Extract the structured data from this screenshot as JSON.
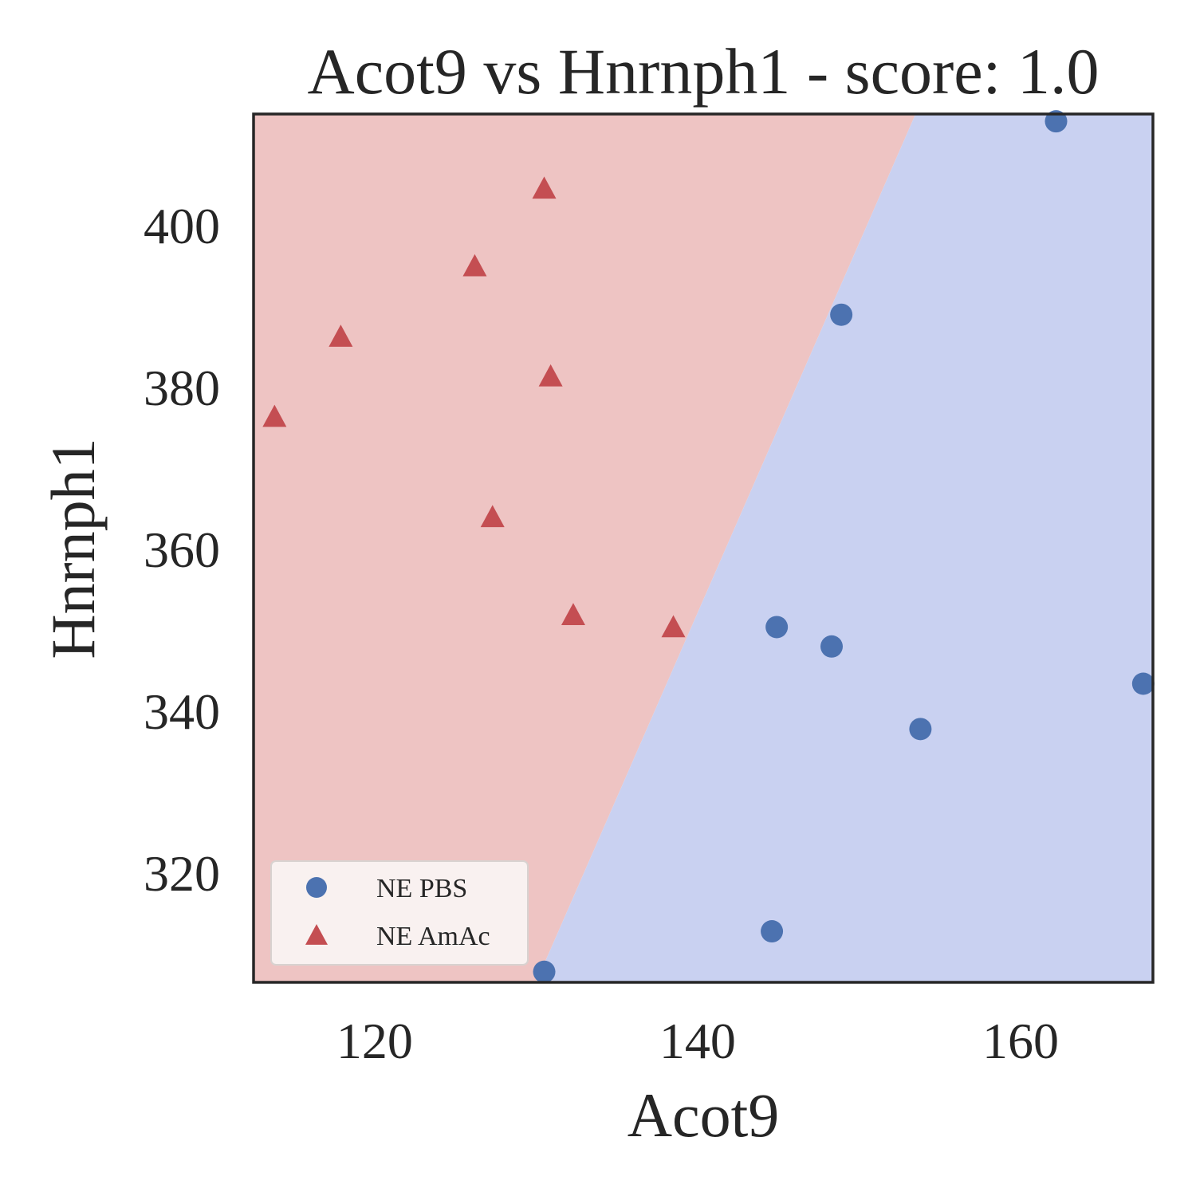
{
  "chart_data": {
    "type": "scatter",
    "title": "Acot9 vs Hnrnph1 - score: 1.0",
    "xlabel": "Acot9",
    "ylabel": "Hnrnph1",
    "xlim": [
      112.5,
      168.2
    ],
    "ylim": [
      306.5,
      413.8
    ],
    "xticks": [
      120,
      140,
      160
    ],
    "yticks": [
      320,
      340,
      360,
      380,
      400
    ],
    "grid": false,
    "legend_position": "lower-left",
    "decision_regions": {
      "boundary_line": [
        [
          130.0,
          306.5
        ],
        [
          153.5,
          413.8
        ]
      ],
      "left_region_color": "#eec4c3",
      "right_region_color": "#c9d1f1",
      "left_class": "NE AmAc",
      "right_class": "NE PBS"
    },
    "series": [
      {
        "name": "NE PBS",
        "marker": "circle",
        "color": "#4c72b0",
        "points": [
          [
            162.2,
            412.9
          ],
          [
            148.9,
            389.0
          ],
          [
            144.9,
            350.4
          ],
          [
            148.3,
            348.0
          ],
          [
            167.6,
            343.4
          ],
          [
            153.8,
            337.8
          ],
          [
            144.6,
            312.8
          ],
          [
            130.5,
            307.8
          ]
        ]
      },
      {
        "name": "NE AmAc",
        "marker": "triangle",
        "color": "#c44e52",
        "points": [
          [
            130.5,
            404.6
          ],
          [
            126.2,
            395.0
          ],
          [
            117.9,
            386.3
          ],
          [
            130.9,
            381.4
          ],
          [
            113.8,
            376.4
          ],
          [
            127.3,
            364.0
          ],
          [
            132.3,
            351.9
          ],
          [
            138.5,
            350.4
          ]
        ]
      }
    ]
  }
}
